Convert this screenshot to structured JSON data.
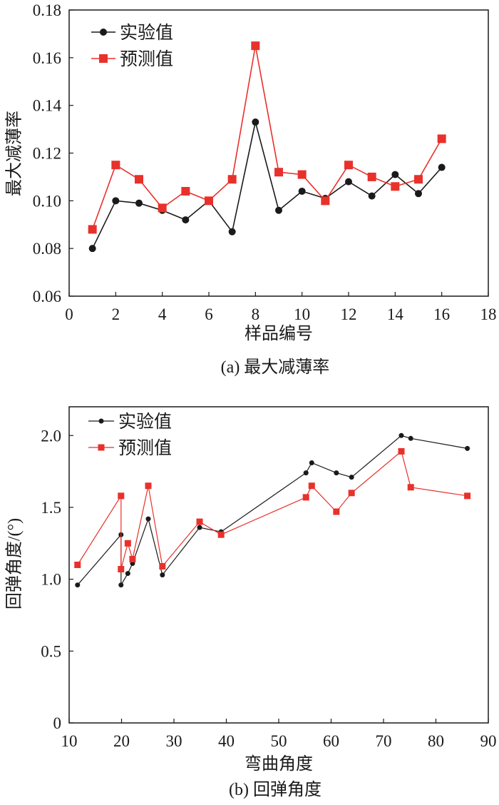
{
  "chart_data": [
    {
      "type": "line",
      "title": "(a) 最大减薄率",
      "xlabel": "样品编号",
      "ylabel": "最大减薄率",
      "xlim": [
        0,
        18
      ],
      "ylim": [
        0.06,
        0.18
      ],
      "xticks": [
        0,
        2,
        4,
        6,
        8,
        10,
        12,
        14,
        16,
        18
      ],
      "yticks": [
        0.06,
        0.08,
        0.1,
        0.12,
        0.14,
        0.16,
        0.18
      ],
      "ytick_labels": [
        "0.06",
        "0.08",
        "0.10",
        "0.12",
        "0.14",
        "0.16",
        "0.18"
      ],
      "legend_position": "top-left",
      "grid": false,
      "series": [
        {
          "name": "实验值",
          "color": "#1a1a1a",
          "marker": "circle",
          "x": [
            1,
            2,
            3,
            4,
            5,
            6,
            7,
            8,
            9,
            10,
            11,
            12,
            13,
            14,
            15,
            16
          ],
          "y": [
            0.08,
            0.1,
            0.099,
            0.096,
            0.092,
            0.1,
            0.087,
            0.133,
            0.096,
            0.104,
            0.101,
            0.108,
            0.102,
            0.111,
            0.103,
            0.114
          ]
        },
        {
          "name": "预测值",
          "color": "#e8312b",
          "marker": "square",
          "x": [
            1,
            2,
            3,
            4,
            5,
            6,
            7,
            8,
            9,
            10,
            11,
            12,
            13,
            14,
            15,
            16
          ],
          "y": [
            0.088,
            0.115,
            0.109,
            0.097,
            0.104,
            0.1,
            0.109,
            0.165,
            0.112,
            0.111,
            0.1,
            0.115,
            0.11,
            0.106,
            0.109,
            0.126
          ]
        }
      ]
    },
    {
      "type": "line",
      "title": "(b) 回弹角度",
      "xlabel": "弯曲角度",
      "ylabel": "回弹角度/(°)",
      "xlim": [
        10,
        90
      ],
      "ylim": [
        0,
        2.2
      ],
      "xticks": [
        10,
        20,
        30,
        40,
        50,
        60,
        70,
        80,
        90
      ],
      "yticks": [
        0,
        0.5,
        1.0,
        1.5,
        2.0
      ],
      "ytick_labels": [
        "0",
        "0.5",
        "1.0",
        "1.5",
        "2.0"
      ],
      "legend_position": "top-left",
      "grid": false,
      "series": [
        {
          "name": "实验值",
          "color": "#1a1a1a",
          "marker": "circle",
          "x": [
            11.6,
            19.9,
            19.9,
            21.2,
            22.1,
            25.1,
            27.8,
            34.9,
            39.0,
            55.2,
            56.3,
            61.0,
            63.9,
            73.4,
            75.2,
            86.0
          ],
          "y": [
            0.96,
            1.31,
            0.96,
            1.04,
            1.11,
            1.42,
            1.03,
            1.36,
            1.33,
            1.74,
            1.81,
            1.74,
            1.71,
            2.0,
            1.98,
            1.91
          ]
        },
        {
          "name": "预测值",
          "color": "#e8312b",
          "marker": "square",
          "x": [
            11.6,
            19.9,
            19.9,
            21.2,
            22.1,
            25.1,
            27.8,
            34.9,
            39.0,
            55.2,
            56.3,
            61.0,
            63.9,
            73.4,
            75.2,
            86.0
          ],
          "y": [
            1.1,
            1.58,
            1.07,
            1.25,
            1.14,
            1.65,
            1.09,
            1.4,
            1.31,
            1.57,
            1.65,
            1.47,
            1.6,
            1.89,
            1.64,
            1.58
          ]
        }
      ]
    }
  ]
}
